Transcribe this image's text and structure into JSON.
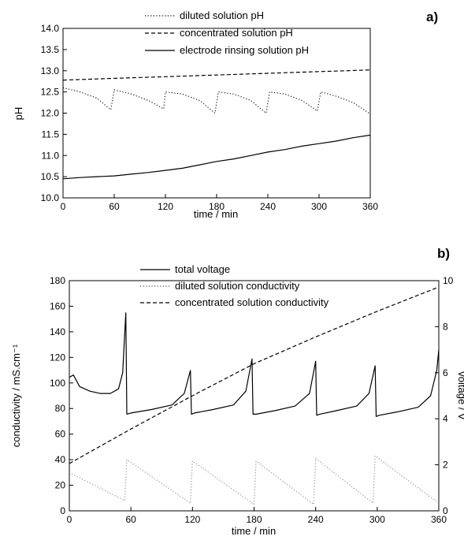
{
  "chart_data": [
    {
      "type": "line",
      "panel_label": "a)",
      "xlabel": "time / min",
      "ylabel": "pH",
      "xlim": [
        0,
        360
      ],
      "ylim": [
        10.0,
        14.0
      ],
      "xticks": [
        0,
        60,
        120,
        180,
        240,
        300,
        360
      ],
      "yticks": [
        "10.0",
        "10.5",
        "11.0",
        "11.5",
        "12.0",
        "12.5",
        "13.0",
        "13.5",
        "14.0"
      ],
      "grid": false,
      "legend": "top-center",
      "series": [
        {
          "name": "diluted solution pH",
          "style": "dotted",
          "x": [
            0,
            20,
            40,
            56,
            60,
            80,
            100,
            118,
            120,
            140,
            160,
            178,
            182,
            200,
            220,
            238,
            242,
            260,
            280,
            298,
            302,
            320,
            340,
            360
          ],
          "y": [
            12.6,
            12.5,
            12.35,
            12.08,
            12.55,
            12.45,
            12.3,
            12.1,
            12.5,
            12.45,
            12.3,
            12.0,
            12.5,
            12.45,
            12.3,
            12.0,
            12.5,
            12.45,
            12.3,
            12.05,
            12.5,
            12.4,
            12.25,
            11.98
          ]
        },
        {
          "name": "concentrated solution pH",
          "style": "dashed",
          "x": [
            0,
            30,
            60,
            90,
            120,
            150,
            180,
            210,
            240,
            270,
            300,
            330,
            360
          ],
          "y": [
            12.78,
            12.8,
            12.82,
            12.84,
            12.86,
            12.88,
            12.9,
            12.92,
            12.94,
            12.96,
            12.98,
            13.0,
            13.02
          ]
        },
        {
          "name": "electrode rinsing solution pH",
          "style": "solid",
          "x": [
            0,
            20,
            40,
            60,
            80,
            100,
            120,
            140,
            160,
            180,
            200,
            220,
            240,
            260,
            280,
            300,
            320,
            340,
            360
          ],
          "y": [
            10.45,
            10.48,
            10.5,
            10.52,
            10.56,
            10.6,
            10.65,
            10.7,
            10.78,
            10.86,
            10.92,
            11.0,
            11.08,
            11.14,
            11.22,
            11.28,
            11.34,
            11.42,
            11.48
          ]
        }
      ]
    },
    {
      "type": "line",
      "panel_label": "b)",
      "xlabel": "time / min",
      "ylabel": "conductivity / mS.cm⁻¹",
      "y2label": "voltage / V",
      "xlim": [
        0,
        360
      ],
      "ylim": [
        0,
        180
      ],
      "y2lim": [
        0,
        10
      ],
      "xticks": [
        0,
        60,
        120,
        180,
        240,
        300,
        360
      ],
      "yticks": [
        0,
        20,
        40,
        60,
        80,
        100,
        120,
        140,
        160,
        180
      ],
      "y2ticks": [
        0,
        2,
        4,
        6,
        8,
        10
      ],
      "grid": false,
      "legend": "top-center",
      "series": [
        {
          "name": "total voltage",
          "style": "solid",
          "axis": "right",
          "x": [
            0,
            4,
            10,
            20,
            30,
            40,
            48,
            52,
            55,
            56,
            60,
            80,
            100,
            112,
            118,
            119,
            122,
            140,
            160,
            172,
            178,
            179,
            182,
            200,
            220,
            234,
            240,
            241,
            244,
            260,
            280,
            292,
            298,
            299,
            302,
            320,
            340,
            352,
            358,
            360
          ],
          "y": [
            5.8,
            5.9,
            5.4,
            5.2,
            5.1,
            5.1,
            5.3,
            6.0,
            8.6,
            4.2,
            4.25,
            4.4,
            4.6,
            5.1,
            6.1,
            4.2,
            4.25,
            4.4,
            4.6,
            5.2,
            6.6,
            4.2,
            4.2,
            4.35,
            4.55,
            5.1,
            6.5,
            4.15,
            4.2,
            4.35,
            4.55,
            5.1,
            6.3,
            4.1,
            4.15,
            4.3,
            4.5,
            5.0,
            6.1,
            7.0
          ]
        },
        {
          "name": "diluted solution conductivity",
          "style": "dotted",
          "axis": "left",
          "x": [
            0,
            54,
            56,
            118,
            120,
            180,
            182,
            238,
            240,
            296,
            298,
            360
          ],
          "y": [
            30,
            8,
            40,
            6,
            39,
            5,
            39,
            5,
            41,
            6,
            43,
            6
          ]
        },
        {
          "name": "concentrated solution conductivity",
          "style": "dashed",
          "axis": "left",
          "x": [
            0,
            60,
            120,
            180,
            240,
            300,
            360
          ],
          "y": [
            37,
            64,
            90,
            115,
            136,
            156,
            175
          ]
        }
      ]
    }
  ]
}
